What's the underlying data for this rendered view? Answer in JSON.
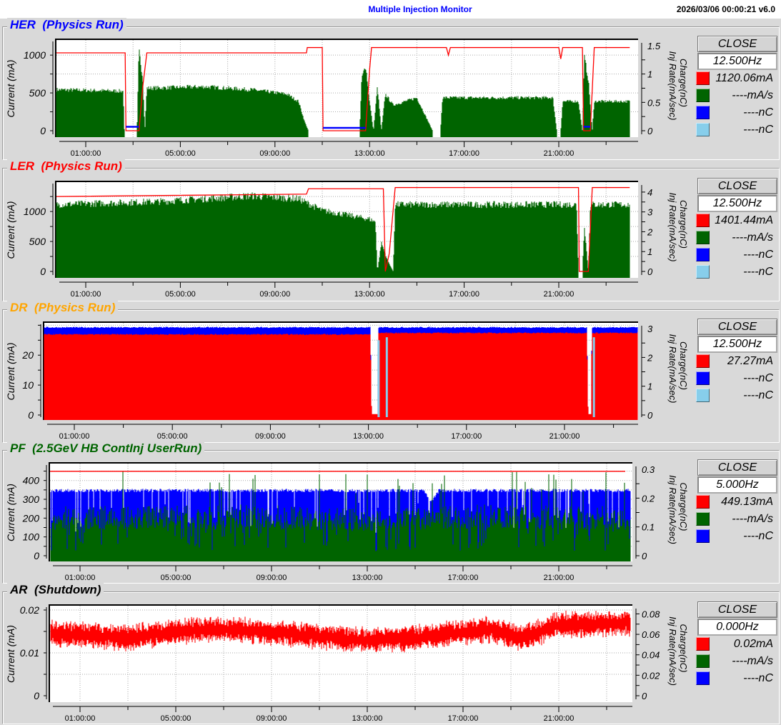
{
  "header": {
    "title": "Multiple Injection Monitor",
    "timestamp": "2026/03/06 00:00:21   v6.0"
  },
  "colors": {
    "current": "#ff0000",
    "inj_rate": "#006400",
    "charge1": "#0000ff",
    "charge2": "#87ceeb"
  },
  "common": {
    "left_axis_label": "Current (mA)",
    "right_axis_label_1": "Charge(nC)",
    "right_axis_label_2": "Inj Rate(mA/sec)",
    "close_label": "CLOSE"
  },
  "panels": [
    {
      "name": "HER",
      "title": "HER  (Physics Run)",
      "title_color": "#0000ff",
      "freq": "12.500Hz",
      "legend": [
        {
          "color": "#ff0000",
          "text": "1120.06mA"
        },
        {
          "color": "#006400",
          "text": "----mA/s"
        },
        {
          "color": "#0000ff",
          "text": "----nC"
        },
        {
          "color": "#87ceeb",
          "text": "----nC"
        }
      ]
    },
    {
      "name": "LER",
      "title": "LER  (Physics Run)",
      "title_color": "#ff0000",
      "freq": "12.500Hz",
      "legend": [
        {
          "color": "#ff0000",
          "text": "1401.44mA"
        },
        {
          "color": "#006400",
          "text": "----mA/s"
        },
        {
          "color": "#0000ff",
          "text": "----nC"
        },
        {
          "color": "#87ceeb",
          "text": "----nC"
        }
      ]
    },
    {
      "name": "DR",
      "title": "DR  (Physics Run)",
      "title_color": "#ffa500",
      "freq": "12.500Hz",
      "legend": [
        {
          "color": "#ff0000",
          "text": "27.27mA"
        },
        {
          "color": "#0000ff",
          "text": "----nC"
        },
        {
          "color": "#87ceeb",
          "text": "----nC"
        }
      ]
    },
    {
      "name": "PF",
      "title": "PF  (2.5GeV HB ContInj UserRun)",
      "title_color": "#006400",
      "freq": "5.000Hz",
      "legend": [
        {
          "color": "#ff0000",
          "text": "449.13mA"
        },
        {
          "color": "#006400",
          "text": "----mA/s"
        },
        {
          "color": "#0000ff",
          "text": "----nC"
        }
      ]
    },
    {
      "name": "AR",
      "title": "AR  (Shutdown)",
      "title_color": "#000000",
      "freq": "0.000Hz",
      "legend": [
        {
          "color": "#ff0000",
          "text": "0.02mA"
        },
        {
          "color": "#006400",
          "text": "----mA/s"
        },
        {
          "color": "#0000ff",
          "text": "----nC"
        }
      ]
    }
  ],
  "chart_data": [
    {
      "panel": "HER",
      "type": "area",
      "grid": true,
      "x_ticks": [
        "01:00:00",
        "05:00:00",
        "09:00:00",
        "13:00:00",
        "17:00:00",
        "21:00:00"
      ],
      "left_ticks": [
        "0",
        "500",
        "1000"
      ],
      "left_values": [
        0,
        500,
        1000
      ],
      "ylim_left": [
        0,
        1200
      ],
      "right_ticks": [
        "0",
        "0.5",
        "1",
        "1.5"
      ],
      "right_values": [
        0,
        0.5,
        1,
        1.5
      ],
      "ylim_right": [
        0,
        1.6
      ],
      "series": [
        {
          "kind": "inj_rate",
          "style": "area",
          "axis": "left",
          "color": "#006400",
          "points": [
            [
              "23:45",
              560
            ],
            [
              "02:35",
              540
            ],
            [
              "02:38",
              0
            ],
            [
              "03:10",
              0
            ],
            [
              "03:15",
              1100
            ],
            [
              "03:25",
              700
            ],
            [
              "03:30",
              0
            ],
            [
              "03:35",
              580
            ],
            [
              "06:00",
              600
            ],
            [
              "08:00",
              560
            ],
            [
              "09:30",
              500
            ],
            [
              "10:00",
              400
            ],
            [
              "10:15",
              130
            ],
            [
              "10:25",
              0
            ],
            [
              "12:35",
              0
            ],
            [
              "12:40",
              700
            ],
            [
              "12:50",
              900
            ],
            [
              "13:00",
              400
            ],
            [
              "13:10",
              0
            ],
            [
              "13:20",
              600
            ],
            [
              "13:30",
              0
            ],
            [
              "13:40",
              500
            ],
            [
              "14:00",
              350
            ],
            [
              "15:00",
              450
            ],
            [
              "15:40",
              0
            ],
            [
              "16:00",
              0
            ],
            [
              "16:05",
              450
            ],
            [
              "20:45",
              450
            ],
            [
              "20:55",
              0
            ],
            [
              "21:05",
              0
            ],
            [
              "21:10",
              400
            ],
            [
              "21:50",
              400
            ],
            [
              "22:00",
              0
            ],
            [
              "22:05",
              1000
            ],
            [
              "22:15",
              700
            ],
            [
              "22:25",
              0
            ],
            [
              "22:30",
              400
            ],
            [
              "24:00",
              400
            ]
          ]
        },
        {
          "kind": "current",
          "style": "line",
          "axis": "left",
          "color": "#ff0000",
          "points": [
            [
              "23:45",
              1030
            ],
            [
              "02:40",
              1030
            ],
            [
              "02:42",
              0
            ],
            [
              "03:15",
              0
            ],
            [
              "03:25",
              600
            ],
            [
              "03:35",
              1030
            ],
            [
              "10:20",
              1030
            ],
            [
              "10:22",
              1100
            ],
            [
              "11:00",
              1100
            ],
            [
              "11:02",
              0
            ],
            [
              "12:50",
              0
            ],
            [
              "13:00",
              800
            ],
            [
              "13:05",
              1100
            ],
            [
              "16:15",
              1100
            ],
            [
              "16:20",
              1000
            ],
            [
              "16:25",
              1100
            ],
            [
              "21:00",
              1100
            ],
            [
              "21:05",
              950
            ],
            [
              "21:10",
              1100
            ],
            [
              "22:00",
              1100
            ],
            [
              "22:03",
              0
            ],
            [
              "22:20",
              0
            ],
            [
              "22:30",
              1100
            ],
            [
              "24:00",
              1100
            ]
          ]
        },
        {
          "kind": "charge",
          "style": "line",
          "axis": "right",
          "color": "#0000ff",
          "points": [
            [
              "02:42",
              0.07
            ],
            [
              "03:15",
              0.07
            ],
            null,
            [
              "11:02",
              0.05
            ],
            [
              "12:50",
              0.05
            ],
            null,
            [
              "22:03",
              0.07
            ],
            [
              "22:20",
              0.07
            ]
          ]
        }
      ]
    },
    {
      "panel": "LER",
      "type": "area",
      "grid": true,
      "x_ticks": [
        "01:00:00",
        "05:00:00",
        "09:00:00",
        "13:00:00",
        "17:00:00",
        "21:00:00"
      ],
      "left_ticks": [
        "0",
        "500",
        "1000"
      ],
      "left_values": [
        0,
        500,
        1000
      ],
      "ylim_left": [
        0,
        1490
      ],
      "right_ticks": [
        "0",
        "1",
        "2",
        "3",
        "4"
      ],
      "right_values": [
        0,
        1,
        2,
        3,
        4
      ],
      "ylim_right": [
        0,
        4.5
      ],
      "series": [
        {
          "kind": "inj_rate",
          "style": "area",
          "axis": "left",
          "color": "#006400",
          "points": [
            [
              "23:45",
              1150
            ],
            [
              "04:00",
              1200
            ],
            [
              "08:00",
              1300
            ],
            [
              "10:00",
              1250
            ],
            [
              "11:00",
              1050
            ],
            [
              "13:00",
              900
            ],
            [
              "13:15",
              850
            ],
            [
              "13:20",
              0
            ],
            [
              "13:30",
              500
            ],
            [
              "13:45",
              200
            ],
            [
              "14:00",
              0
            ],
            [
              "14:05",
              1150
            ],
            [
              "21:45",
              1150
            ],
            [
              "21:50",
              0
            ],
            [
              "22:00",
              0
            ],
            [
              "22:05",
              800
            ],
            [
              "22:15",
              0
            ],
            [
              "22:20",
              1150
            ],
            [
              "24:00",
              1150
            ]
          ]
        },
        {
          "kind": "current",
          "style": "line",
          "axis": "left",
          "color": "#ff0000",
          "points": [
            [
              "23:45",
              1250
            ],
            [
              "10:20",
              1290
            ],
            [
              "10:25",
              1380
            ],
            [
              "13:35",
              1380
            ],
            [
              "13:40",
              0
            ],
            [
              "13:50",
              300
            ],
            [
              "14:05",
              1400
            ],
            [
              "21:50",
              1400
            ],
            [
              "21:52",
              0
            ],
            [
              "22:15",
              0
            ],
            [
              "22:25",
              1400
            ],
            [
              "24:00",
              1400
            ]
          ]
        }
      ]
    },
    {
      "panel": "DR",
      "type": "area",
      "grid": true,
      "x_ticks": [
        "01:00:00",
        "05:00:00",
        "09:00:00",
        "13:00:00",
        "17:00:00",
        "21:00:00"
      ],
      "left_ticks": [
        "0",
        "10",
        "20"
      ],
      "left_values": [
        0,
        10,
        20
      ],
      "ylim_left": [
        0,
        30.8
      ],
      "right_ticks": [
        "0",
        "1",
        "2",
        "3"
      ],
      "right_values": [
        0,
        1,
        2,
        3
      ],
      "ylim_right": [
        0,
        3.2
      ],
      "series": [
        {
          "kind": "charge",
          "style": "area",
          "axis": "right",
          "color": "#0000ff",
          "points": [
            [
              "23:45",
              3.05
            ],
            [
              "13:05",
              3.05
            ],
            [
              "13:08",
              0
            ],
            [
              "13:22",
              0
            ],
            [
              "13:24",
              3.05
            ],
            [
              "21:55",
              3.05
            ],
            [
              "21:58",
              0
            ],
            [
              "22:05",
              0
            ],
            [
              "22:07",
              3.05
            ],
            [
              "24:00",
              3.05
            ]
          ]
        },
        {
          "kind": "current",
          "style": "area",
          "axis": "left",
          "color": "#ff0000",
          "points": [
            [
              "23:45",
              27
            ],
            [
              "13:05",
              27
            ],
            [
              "13:08",
              0.3
            ],
            [
              "13:22",
              0.3
            ],
            [
              "13:24",
              27.5
            ],
            [
              "21:55",
              27.5
            ],
            [
              "21:58",
              0.3
            ],
            [
              "22:05",
              0.3
            ],
            [
              "22:07",
              27.5
            ],
            [
              "24:00",
              27.5
            ]
          ]
        },
        {
          "kind": "charge2",
          "style": "spikes",
          "axis": "right",
          "color": "#87ceeb",
          "points": [
            [
              "13:25",
              2.6
            ],
            [
              "13:45",
              2.7
            ],
            [
              "22:12",
              2.7
            ]
          ]
        }
      ]
    },
    {
      "panel": "PF",
      "type": "area",
      "grid": true,
      "x_ticks": [
        "01:00:00",
        "05:00:00",
        "09:00:00",
        "13:00:00",
        "17:00:00",
        "21:00:00"
      ],
      "left_ticks": [
        "0",
        "100",
        "200",
        "300",
        "400"
      ],
      "left_values": [
        0,
        100,
        200,
        300,
        400
      ],
      "ylim_left": [
        0,
        490
      ],
      "right_ticks": [
        "0",
        "0.1",
        "0.2",
        "0.3"
      ],
      "right_values": [
        0,
        0.1,
        0.2,
        0.3
      ],
      "ylim_right": [
        0,
        0.32
      ],
      "series": [
        {
          "kind": "charge",
          "style": "area",
          "axis": "right",
          "color": "#0000ff",
          "points": [
            [
              "23:45",
              0.23
            ],
            [
              "15:20",
              0.23
            ],
            [
              "15:40",
              0.19
            ],
            [
              "16:00",
              0.23
            ],
            [
              "24:00",
              0.23
            ]
          ]
        },
        {
          "kind": "inj_rate",
          "style": "area",
          "axis": "left",
          "color": "#006400",
          "points": [
            [
              "23:45",
              250
            ],
            [
              "08:00",
              260
            ],
            [
              "13:00",
              240
            ],
            [
              "18:00",
              260
            ],
            [
              "24:00",
              250
            ]
          ]
        },
        {
          "kind": "current",
          "style": "line",
          "axis": "left",
          "color": "#ff0000",
          "points": [
            [
              "23:45",
              449
            ],
            [
              "24:00",
              449
            ]
          ]
        }
      ]
    },
    {
      "panel": "AR",
      "type": "area",
      "grid": true,
      "x_ticks": [
        "01:00:00",
        "05:00:00",
        "09:00:00",
        "13:00:00",
        "17:00:00",
        "21:00:00"
      ],
      "left_ticks": [
        "0",
        "0.01",
        "0.02"
      ],
      "left_values": [
        0,
        0.01,
        0.02
      ],
      "ylim_left": [
        0,
        0.021
      ],
      "right_ticks": [
        "0",
        "0.02",
        "0.04",
        "0.06",
        "0.08"
      ],
      "right_values": [
        0,
        0.02,
        0.04,
        0.06,
        0.08
      ],
      "ylim_right": [
        0,
        0.088
      ],
      "series": [
        {
          "kind": "current",
          "style": "band",
          "axis": "left",
          "color": "#ff0000",
          "points": [
            [
              "23:45",
              0.0145
            ],
            [
              "03:00",
              0.0135
            ],
            [
              "05:00",
              0.015
            ],
            [
              "07:00",
              0.0155
            ],
            [
              "09:00",
              0.0148
            ],
            [
              "13:00",
              0.013
            ],
            [
              "15:00",
              0.0135
            ],
            [
              "18:00",
              0.0155
            ],
            [
              "19:30",
              0.0135
            ],
            [
              "21:00",
              0.0165
            ],
            [
              "24:00",
              0.017
            ]
          ]
        }
      ]
    }
  ]
}
